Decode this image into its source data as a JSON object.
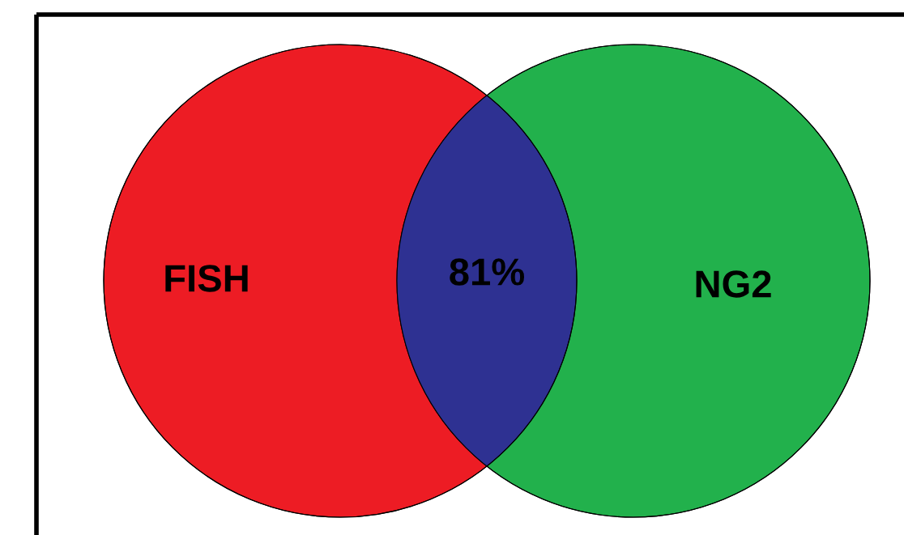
{
  "chart_data": {
    "type": "other",
    "categories": [
      "FISH",
      null,
      "NG2"
    ],
    "values": [
      null,
      81,
      null
    ],
    "value_labels": [
      null,
      "81%",
      null
    ],
    "colors": [
      "#ed1c24",
      "#2e3192",
      "#22b14c"
    ]
  }
}
